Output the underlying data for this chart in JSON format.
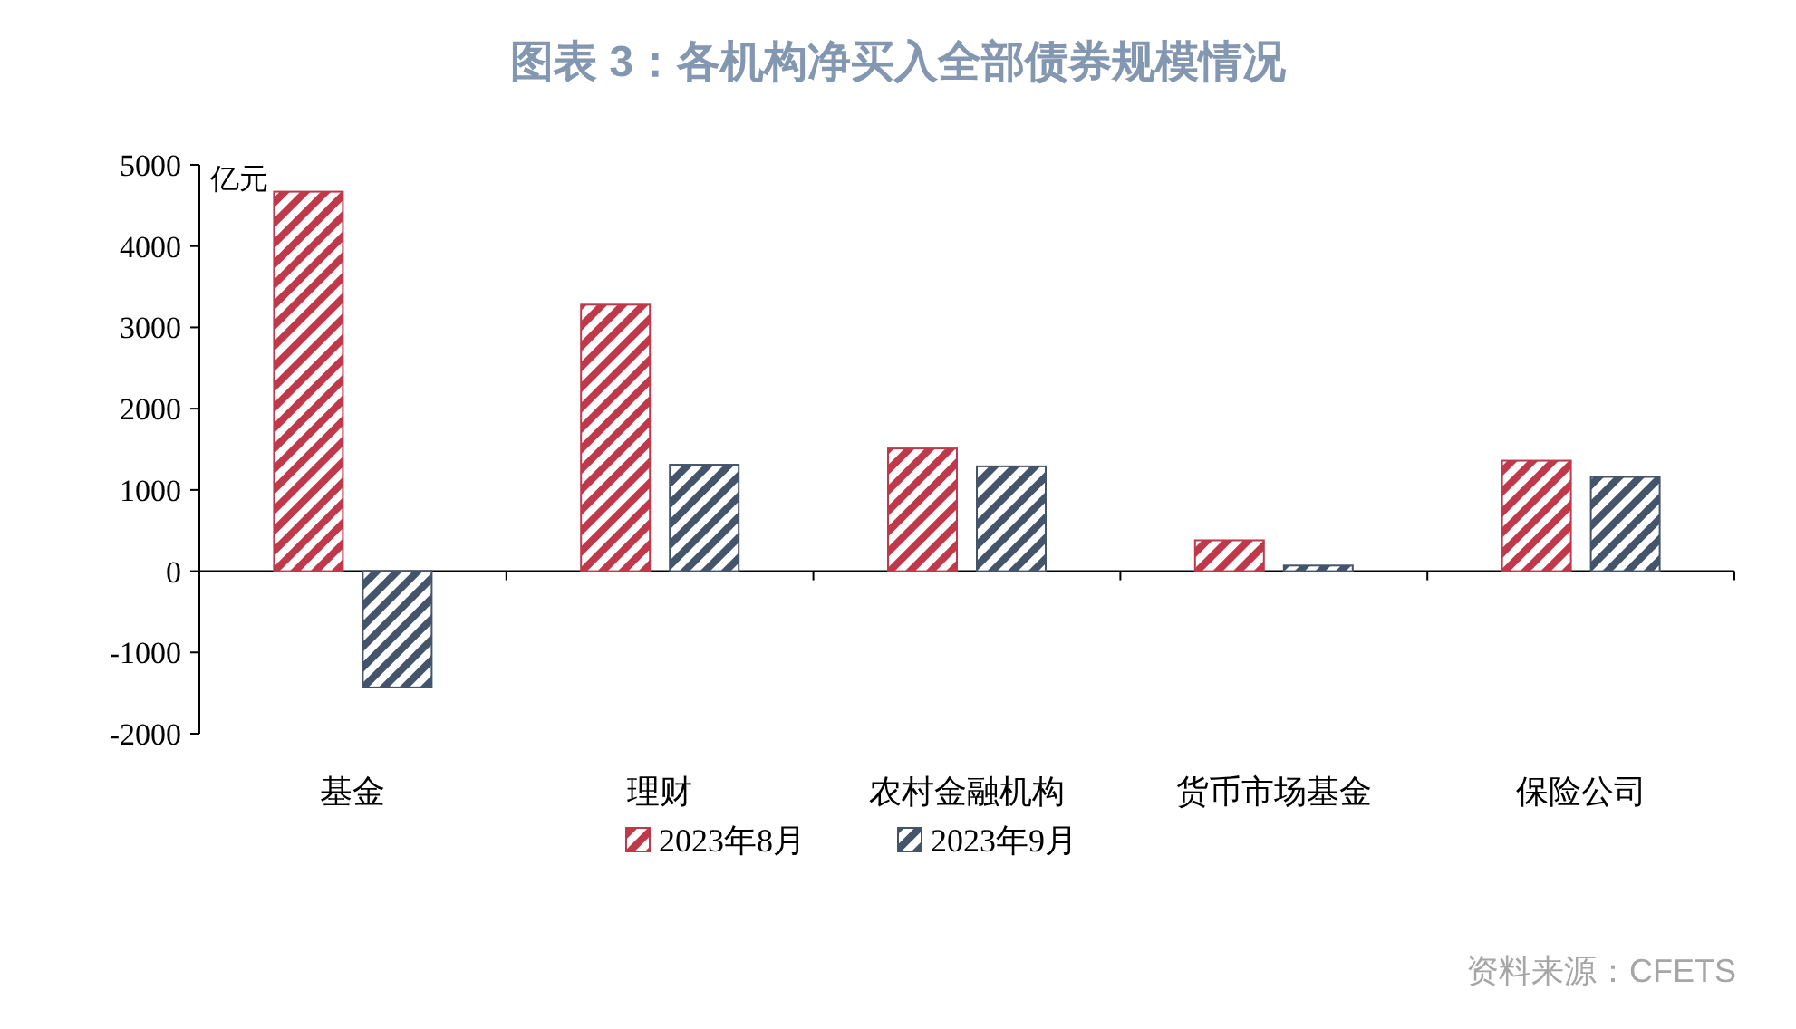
{
  "chart_data": {
    "type": "bar",
    "title": "图表 3：各机构净买入全部债券规模情况",
    "ylabel": "亿元",
    "categories": [
      "基金",
      "理财",
      "农村金融机构",
      "货币市场基金",
      "保险公司"
    ],
    "series": [
      {
        "name": "2023年8月",
        "color": "#c0394b",
        "values": [
          4670,
          3280,
          1510,
          380,
          1360
        ]
      },
      {
        "name": "2023年9月",
        "color": "#44546a",
        "values": [
          -1430,
          1310,
          1290,
          70,
          1160
        ]
      }
    ],
    "ylim": [
      -2000,
      5000
    ],
    "yticks": [
      -2000,
      -1000,
      0,
      1000,
      2000,
      3000,
      4000,
      5000
    ],
    "legend": "bottom",
    "annotations": [
      "资料来源：CFETS"
    ]
  }
}
